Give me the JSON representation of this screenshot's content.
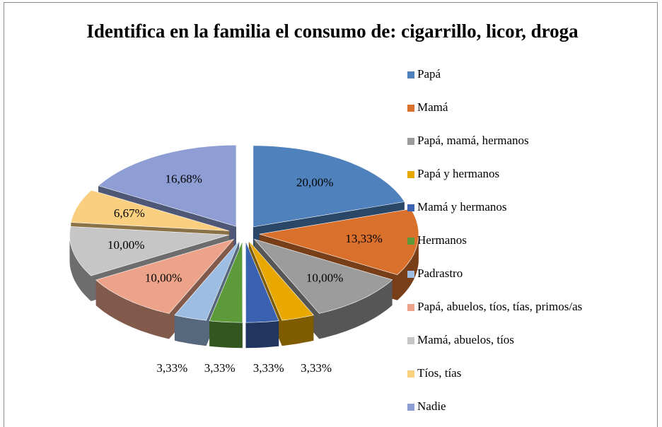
{
  "chart_data": {
    "type": "pie3d",
    "title": "Identifica en la familia el consumo de: cigarrillo, licor, droga",
    "categories": [
      "Papá",
      "Mamá",
      "Papá, mamá, hermanos",
      "Papá y hermanos",
      "Mamá y hermanos",
      "Hermanos",
      "Padrastro",
      "Papá, abuelos, tíos, tías, primos/as",
      "Mamá, abuelos, tíos",
      "Tíos, tías",
      "Nadie"
    ],
    "values": [
      20,
      13.33,
      10,
      3.33,
      3.33,
      3.33,
      3.33,
      10,
      10,
      6.67,
      16.68
    ],
    "value_labels": [
      "20,00%",
      "13,33%",
      "10,00%",
      "3,33%",
      "3,33%",
      "3,33%",
      "3,33%",
      "10,00%",
      "10,00%",
      "6,67%",
      "16,68%"
    ],
    "colors": [
      "#4f81bd",
      "#d9702c",
      "#9c9c9c",
      "#e8a800",
      "#3b62b0",
      "#5c9a3a",
      "#9dbde3",
      "#eca38a",
      "#c6c6c6",
      "#fbcf80",
      "#8e9ed4"
    ],
    "legend": "right"
  }
}
